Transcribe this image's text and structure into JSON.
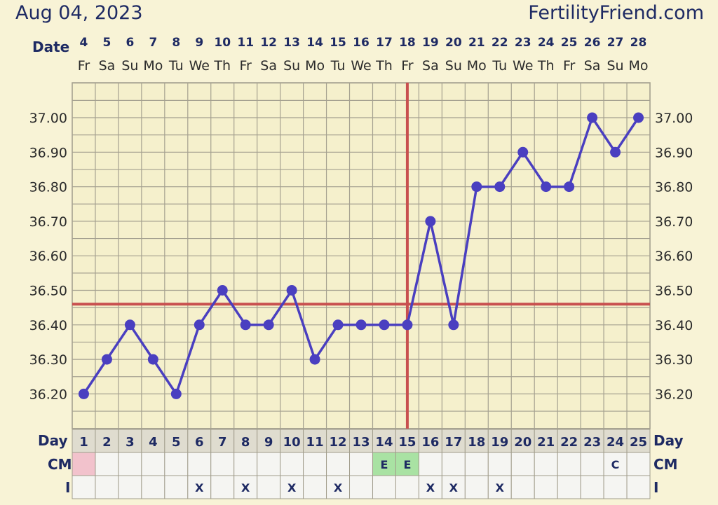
{
  "header": {
    "date": "Aug 04, 2023",
    "site": "FertilityFriend.com"
  },
  "labels": {
    "date_row": "Date",
    "day_row": "Day",
    "cm_row": "CM",
    "i_row": "I"
  },
  "colors": {
    "background": "#f8f3d6",
    "plot_background": "#f5f0cc",
    "grid": "#a5a190",
    "series_line": "#4a3fc0",
    "coverline": "#c8504f",
    "menstruation_cell": "#f2c2cc",
    "egg_white_cell": "#a9e2a3",
    "text_dark": "#1e2a63"
  },
  "chart_data": {
    "type": "line",
    "dates": [
      "4",
      "5",
      "6",
      "7",
      "8",
      "9",
      "10",
      "11",
      "12",
      "13",
      "14",
      "15",
      "16",
      "17",
      "18",
      "19",
      "20",
      "21",
      "22",
      "23",
      "24",
      "25",
      "26",
      "27",
      "28"
    ],
    "weekdays": [
      "Fr",
      "Sa",
      "Su",
      "Mo",
      "Tu",
      "We",
      "Th",
      "Fr",
      "Sa",
      "Su",
      "Mo",
      "Tu",
      "We",
      "Th",
      "Fr",
      "Sa",
      "Su",
      "Mo",
      "Tu",
      "We",
      "Th",
      "Fr",
      "Sa",
      "Su",
      "Mo"
    ],
    "cycle_days": [
      "1",
      "2",
      "3",
      "4",
      "5",
      "6",
      "7",
      "8",
      "9",
      "10",
      "11",
      "12",
      "13",
      "14",
      "15",
      "16",
      "17",
      "18",
      "19",
      "20",
      "21",
      "22",
      "23",
      "24",
      "25"
    ],
    "y_tick_labels": [
      "37.00",
      "36.90",
      "36.80",
      "36.70",
      "36.60",
      "36.50",
      "36.40",
      "36.30",
      "36.20"
    ],
    "y_ticks": [
      37.0,
      36.9,
      36.8,
      36.7,
      36.6,
      36.5,
      36.4,
      36.3,
      36.2
    ],
    "ylim": [
      36.1,
      37.1
    ],
    "series": [
      {
        "values": [
          36.2,
          36.3,
          36.4,
          36.3,
          36.2,
          36.4,
          36.5,
          36.4,
          36.4,
          36.5,
          36.3,
          36.4,
          36.4,
          36.4,
          36.4,
          36.7,
          36.4,
          36.8,
          36.8,
          36.9,
          36.8,
          36.8,
          37.0,
          36.9,
          37.0
        ]
      }
    ],
    "coverline": 36.46,
    "ovulation_day": 15,
    "cm": [
      "menstruation",
      "",
      "",
      "",
      "",
      "",
      "",
      "",
      "",
      "",
      "",
      "",
      "",
      "E",
      "E",
      "",
      "",
      "",
      "",
      "",
      "",
      "",
      "",
      "C",
      ""
    ],
    "i": [
      "",
      "",
      "",
      "",
      "",
      "X",
      "",
      "X",
      "",
      "X",
      "",
      "X",
      "",
      "",
      "",
      "X",
      "X",
      "",
      "X",
      "",
      "",
      "",
      "",
      "",
      ""
    ],
    "grid": true
  }
}
